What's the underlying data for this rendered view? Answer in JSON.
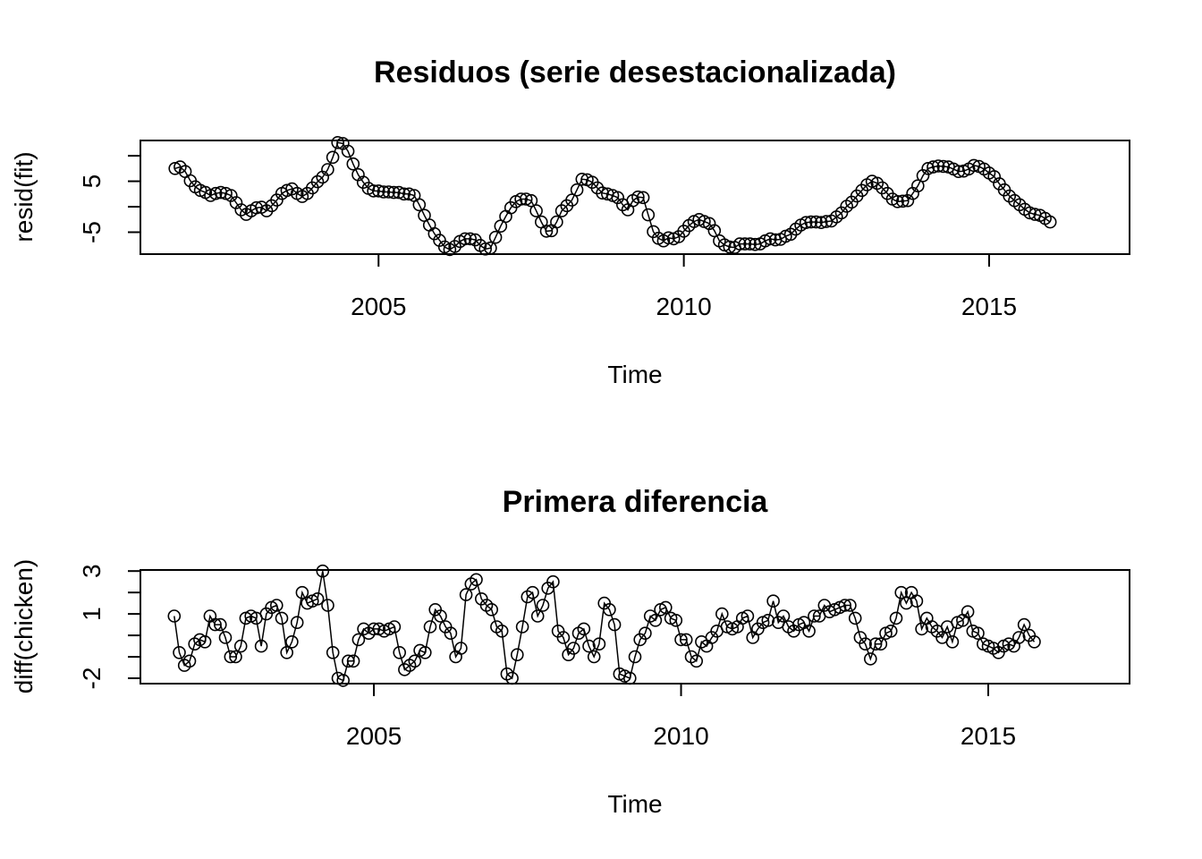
{
  "chart_data": [
    {
      "type": "line",
      "title": "Residuos (serie desestacionalizada)",
      "xlabel": "Time",
      "ylabel": "resid(fit)",
      "xlim": [
        2001.1,
        2017.3
      ],
      "ylim": [
        -9.3,
        13.0
      ],
      "xticks": [
        2005,
        2010,
        2015
      ],
      "xtick_labels": [
        "2005",
        "2010",
        "2015"
      ],
      "yticks": [
        -5,
        0,
        5,
        10
      ],
      "ytick_labels": [
        "-5",
        "",
        "5",
        ""
      ],
      "marker": "open-circle",
      "series": [
        {
          "x_start": 2001.6667,
          "x_step": 0.083333,
          "values": [
            7.5,
            7.8,
            6.9,
            5.1,
            3.9,
            3.2,
            2.8,
            2.2,
            2.6,
            2.8,
            2.6,
            2.2,
            0.8,
            -0.6,
            -1.5,
            -0.8,
            -0.2,
            -0.1,
            -0.8,
            0.2,
            1.3,
            2.6,
            3.2,
            3.5,
            2.6,
            2.0,
            2.6,
            3.7,
            4.9,
            5.8,
            7.3,
            9.7,
            12.6,
            12.4,
            10.9,
            8.4,
            6.3,
            4.8,
            3.6,
            3.1,
            3.1,
            2.9,
            2.9,
            2.8,
            2.8,
            2.5,
            2.5,
            2.2,
            0.4,
            -1.7,
            -3.6,
            -5.3,
            -6.6,
            -7.9,
            -8.4,
            -7.8,
            -6.8,
            -6.3,
            -6.3,
            -6.5,
            -7.6,
            -8.3,
            -8.1,
            -6.0,
            -3.8,
            -1.9,
            -0.2,
            1.0,
            1.5,
            1.5,
            1.2,
            -0.8,
            -3.0,
            -4.8,
            -4.7,
            -3.0,
            -0.8,
            0.2,
            1.3,
            3.3,
            5.4,
            5.3,
            4.8,
            3.7,
            2.7,
            2.5,
            2.2,
            1.8,
            0.4,
            -0.6,
            1.2,
            1.9,
            1.8,
            -1.6,
            -4.9,
            -6.2,
            -6.7,
            -6.1,
            -6.3,
            -5.9,
            -4.8,
            -3.7,
            -2.9,
            -2.5,
            -2.9,
            -3.3,
            -4.7,
            -6.7,
            -7.5,
            -7.9,
            -8.0,
            -7.3,
            -7.3,
            -7.3,
            -7.4,
            -7.3,
            -6.7,
            -6.3,
            -6.5,
            -6.4,
            -5.8,
            -5.4,
            -4.4,
            -3.6,
            -3.1,
            -3.0,
            -3.0,
            -3.1,
            -2.9,
            -2.8,
            -2.0,
            -1.2,
            0.1,
            0.9,
            2.1,
            3.2,
            4.3,
            5.0,
            4.6,
            3.7,
            2.6,
            1.5,
            1.0,
            1.1,
            1.2,
            2.6,
            4.1,
            6.1,
            7.5,
            7.8,
            8.0,
            7.9,
            7.8,
            7.4,
            6.9,
            7.0,
            7.4,
            8.1,
            7.9,
            7.4,
            6.6,
            5.9,
            4.5,
            3.3,
            2.1,
            1.2,
            0.4,
            -0.5,
            -1.2,
            -1.5,
            -1.7,
            -2.3,
            -3.0
          ]
        }
      ]
    },
    {
      "type": "line",
      "title": "Primera diferencia",
      "xlabel": "Time",
      "ylabel": "diff(chicken)",
      "xlim": [
        2001.2,
        2017.3
      ],
      "ylim": [
        -2.25,
        3.05
      ],
      "xticks": [
        2005,
        2010,
        2015
      ],
      "xtick_labels": [
        "2005",
        "2010",
        "2015"
      ],
      "yticks": [
        -2,
        -1,
        0,
        1,
        2,
        3
      ],
      "ytick_labels": [
        "-2",
        "",
        "",
        "1",
        "",
        "3"
      ],
      "marker": "open-circle",
      "series": [
        {
          "x_start": 2001.75,
          "x_step": 0.083333,
          "values": [
            0.9,
            -0.8,
            -1.4,
            -1.2,
            -0.4,
            -0.2,
            -0.3,
            0.9,
            0.5,
            0.5,
            -0.1,
            -1.0,
            -1.0,
            -0.5,
            0.8,
            0.9,
            0.8,
            -0.5,
            1.0,
            1.3,
            1.4,
            0.8,
            -0.8,
            -0.3,
            0.6,
            2.0,
            1.5,
            1.6,
            1.7,
            3.0,
            1.4,
            -0.8,
            -2.0,
            -2.1,
            -1.2,
            -1.2,
            -0.2,
            0.3,
            0.1,
            0.3,
            0.3,
            0.2,
            0.3,
            0.4,
            -0.8,
            -1.6,
            -1.4,
            -1.2,
            -0.7,
            -0.8,
            0.4,
            1.2,
            0.9,
            0.4,
            0.1,
            -1.0,
            -0.6,
            1.9,
            2.4,
            2.6,
            1.7,
            1.4,
            1.2,
            0.4,
            0.2,
            -1.8,
            -2.0,
            -0.9,
            0.4,
            1.8,
            2.0,
            0.9,
            1.4,
            2.2,
            2.5,
            0.2,
            -0.1,
            -0.9,
            -0.6,
            0.1,
            0.3,
            -0.5,
            -1.0,
            -0.4,
            1.5,
            1.2,
            0.5,
            -1.8,
            -1.9,
            -2.0,
            -1.0,
            -0.2,
            0.1,
            0.9,
            0.7,
            1.2,
            1.3,
            0.8,
            0.7,
            -0.2,
            -0.2,
            -1.0,
            -1.2,
            -0.3,
            -0.5,
            -0.1,
            0.2,
            1.0,
            0.4,
            0.3,
            0.4,
            0.8,
            0.9,
            -0.1,
            0.3,
            0.6,
            0.7,
            1.6,
            0.6,
            0.9,
            0.4,
            0.2,
            0.5,
            0.6,
            0.2,
            0.9,
            0.9,
            1.4,
            1.1,
            1.2,
            1.3,
            1.4,
            1.4,
            0.8,
            -0.1,
            -0.4,
            -1.1,
            -0.4,
            -0.4,
            0.1,
            0.2,
            0.8,
            2.0,
            1.5,
            2.0,
            1.6,
            0.3,
            0.8,
            0.4,
            0.2,
            -0.1,
            0.4,
            -0.3,
            0.6,
            0.7,
            1.1,
            0.2,
            0.1,
            -0.4,
            -0.5,
            -0.6,
            -0.8,
            -0.5,
            -0.4,
            -0.5,
            -0.1,
            0.5,
            0.0,
            -0.3
          ]
        }
      ]
    }
  ]
}
